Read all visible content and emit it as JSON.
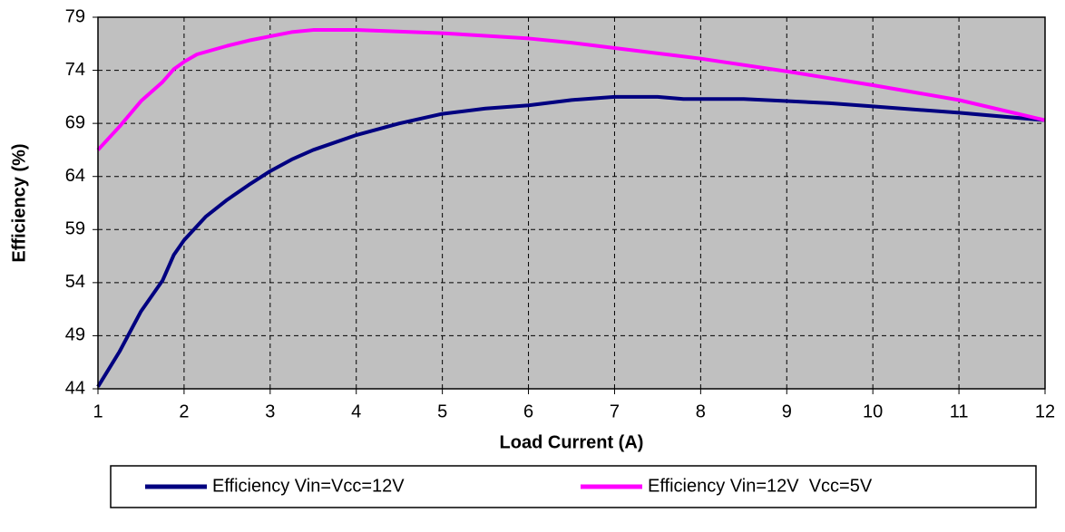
{
  "chart_data": {
    "type": "line",
    "xlabel": "Load Current (A)",
    "ylabel": "Efficiency (%)",
    "xlim": [
      1,
      12
    ],
    "xticks": [
      1,
      2,
      3,
      4,
      5,
      6,
      7,
      8,
      9,
      10,
      11,
      12
    ],
    "ylim": [
      44,
      79
    ],
    "yticks": [
      44,
      49,
      54,
      59,
      64,
      69,
      74,
      79
    ],
    "grid": true,
    "legend": "bottom",
    "series": [
      {
        "name": "Efficiency Vin=Vcc=12V",
        "color": "#000080",
        "x": [
          1,
          1.25,
          1.5,
          1.75,
          1.88,
          2,
          2.25,
          2.5,
          2.75,
          3,
          3.25,
          3.5,
          4,
          4.5,
          5,
          5.5,
          6,
          6.5,
          7,
          7.5,
          7.8,
          8.5,
          9,
          9.5,
          10,
          11,
          12
        ],
        "values": [
          44.2,
          47.5,
          51.3,
          54.2,
          56.6,
          58,
          60.2,
          61.8,
          63.2,
          64.5,
          65.6,
          66.5,
          67.9,
          69,
          69.9,
          70.4,
          70.7,
          71.2,
          71.5,
          71.5,
          71.3,
          71.3,
          71.1,
          70.9,
          70.6,
          70,
          69.3
        ]
      },
      {
        "name": "Efficiency Vin=12V  Vcc=5V",
        "color": "#ff00ff",
        "x": [
          1,
          1.25,
          1.5,
          1.75,
          1.88,
          2,
          2.15,
          2.5,
          2.75,
          3,
          3.25,
          3.5,
          4,
          5,
          6,
          6.5,
          7,
          8,
          9,
          10,
          11,
          12
        ],
        "values": [
          66.5,
          68.7,
          71.1,
          72.9,
          74.1,
          74.8,
          75.5,
          76.3,
          76.8,
          77.2,
          77.6,
          77.8,
          77.8,
          77.5,
          77,
          76.6,
          76.1,
          75.1,
          73.9,
          72.6,
          71.2,
          69.3
        ]
      }
    ]
  }
}
